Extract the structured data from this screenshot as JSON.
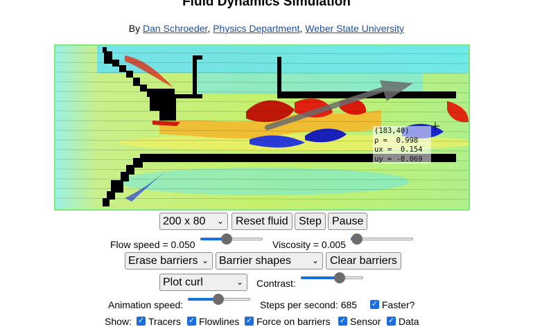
{
  "header": {
    "title": "Fluid Dynamics Simulation",
    "by": "By ",
    "author": "Dan Schroeder",
    "dept": "Physics Department",
    "university": "Weber State University",
    "sep": ", "
  },
  "sensor": {
    "coords": "(183,40)",
    "rho": "ρ =  0.998",
    "ux": "ux =  0.154",
    "uy": "uy = -0.069"
  },
  "controls": {
    "size_select": "200 x 80",
    "reset_label": "Reset fluid",
    "step_label": "Step",
    "pause_label": "Pause",
    "flow_speed_label": "Flow speed = 0.050",
    "flow_speed_fraction": 0.4,
    "viscosity_label": "Viscosity = 0.005",
    "viscosity_fraction": 0.02,
    "erase_select": "Erase barriers",
    "shapes_select": "Barrier shapes",
    "clear_label": "Clear barriers",
    "plot_select": "Plot curl",
    "contrast_label": "Contrast:",
    "contrast_fraction": 0.65,
    "anim_speed_label": "Animation speed:",
    "anim_speed_fraction": 0.48,
    "steps_label": "Steps per second: 685",
    "faster_label": "Faster?",
    "show_label": "Show:",
    "tracers_label": "Tracers",
    "flowlines_label": "Flowlines",
    "force_label": "Force on barriers",
    "sensor_label": "Sensor",
    "data_label": "Data"
  },
  "colors": {
    "accent": "#1a6fe0",
    "link": "#1a4fa8",
    "canvas_border": "#7ee87a"
  }
}
